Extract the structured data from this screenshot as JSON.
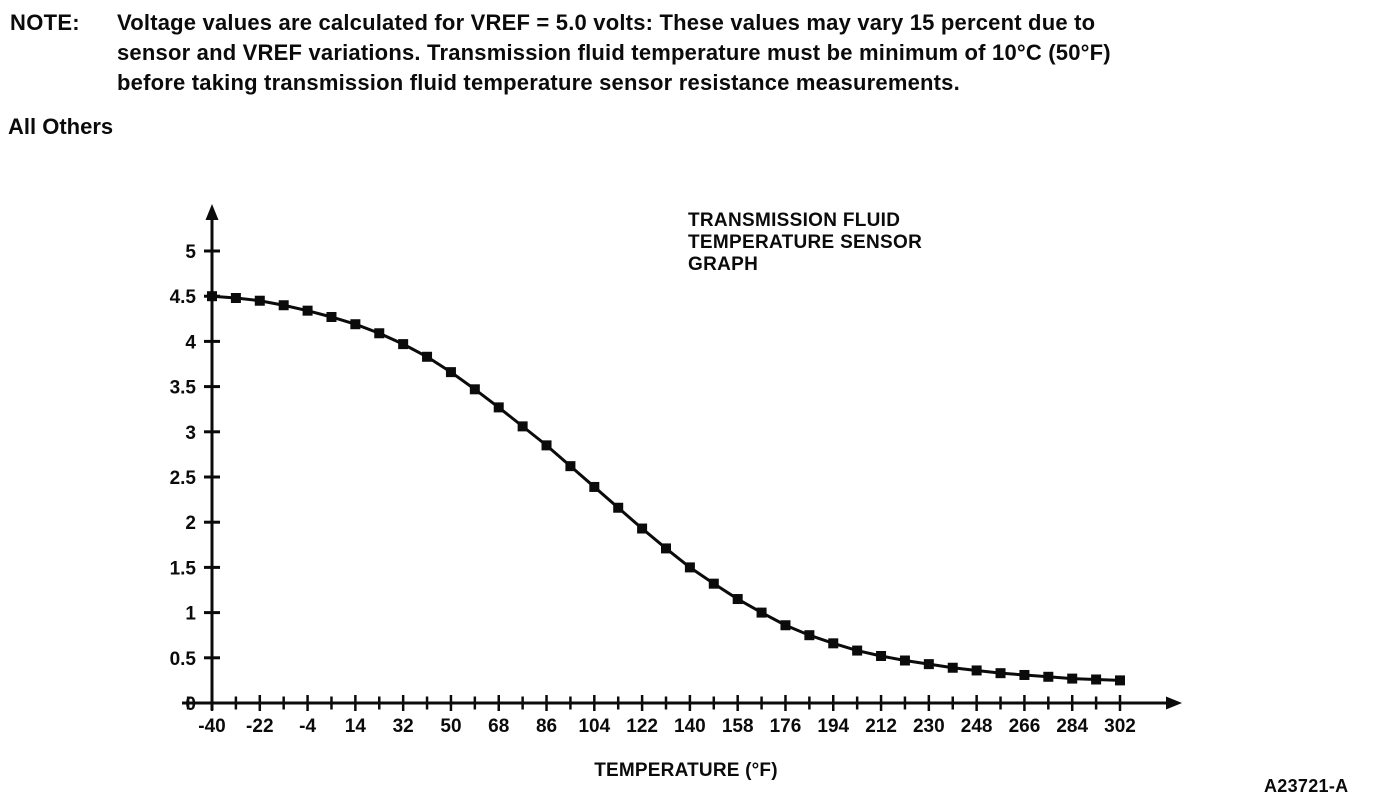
{
  "note": {
    "label": "NOTE:",
    "text": "Voltage values are calculated for VREF = 5.0 volts: These values may vary 15 percent due to\nsensor and VREF variations. Transmission fluid temperature must be minimum of 10°C (50°F)\nbefore taking transmission fluid temperature sensor resistance measurements."
  },
  "section_heading": "All Others",
  "figure_id": "A23721-A",
  "chart_data": {
    "type": "line",
    "title": "TRANSMISSION FLUID\nTEMPERATURE SENSOR\nGRAPH",
    "xlabel": "TEMPERATURE (°F)",
    "ylabel": "",
    "marker": "square",
    "color": "#0b0b0b",
    "grid": false,
    "legend": "none",
    "xlim": [
      -49,
      311
    ],
    "ylim": [
      0,
      5.4
    ],
    "x_major_ticks": [
      -40,
      -22,
      -4,
      14,
      32,
      50,
      68,
      86,
      104,
      122,
      140,
      158,
      176,
      194,
      212,
      230,
      248,
      266,
      284,
      302
    ],
    "x_minor_step": 9,
    "y_ticks": [
      0,
      0.5,
      1,
      1.5,
      2,
      2.5,
      3,
      3.5,
      4,
      4.5,
      5
    ],
    "x": [
      -40,
      -31,
      -22,
      -13,
      -4,
      5,
      14,
      23,
      32,
      41,
      50,
      59,
      68,
      77,
      86,
      95,
      104,
      113,
      122,
      131,
      140,
      149,
      158,
      167,
      176,
      185,
      194,
      203,
      212,
      221,
      230,
      239,
      248,
      257,
      266,
      275,
      284,
      293,
      302
    ],
    "y": [
      4.5,
      4.48,
      4.45,
      4.4,
      4.34,
      4.27,
      4.19,
      4.09,
      3.97,
      3.83,
      3.66,
      3.47,
      3.27,
      3.06,
      2.85,
      2.62,
      2.39,
      2.16,
      1.93,
      1.71,
      1.5,
      1.32,
      1.15,
      1.0,
      0.86,
      0.75,
      0.66,
      0.58,
      0.52,
      0.47,
      0.43,
      0.39,
      0.36,
      0.33,
      0.31,
      0.29,
      0.27,
      0.26,
      0.25
    ]
  }
}
